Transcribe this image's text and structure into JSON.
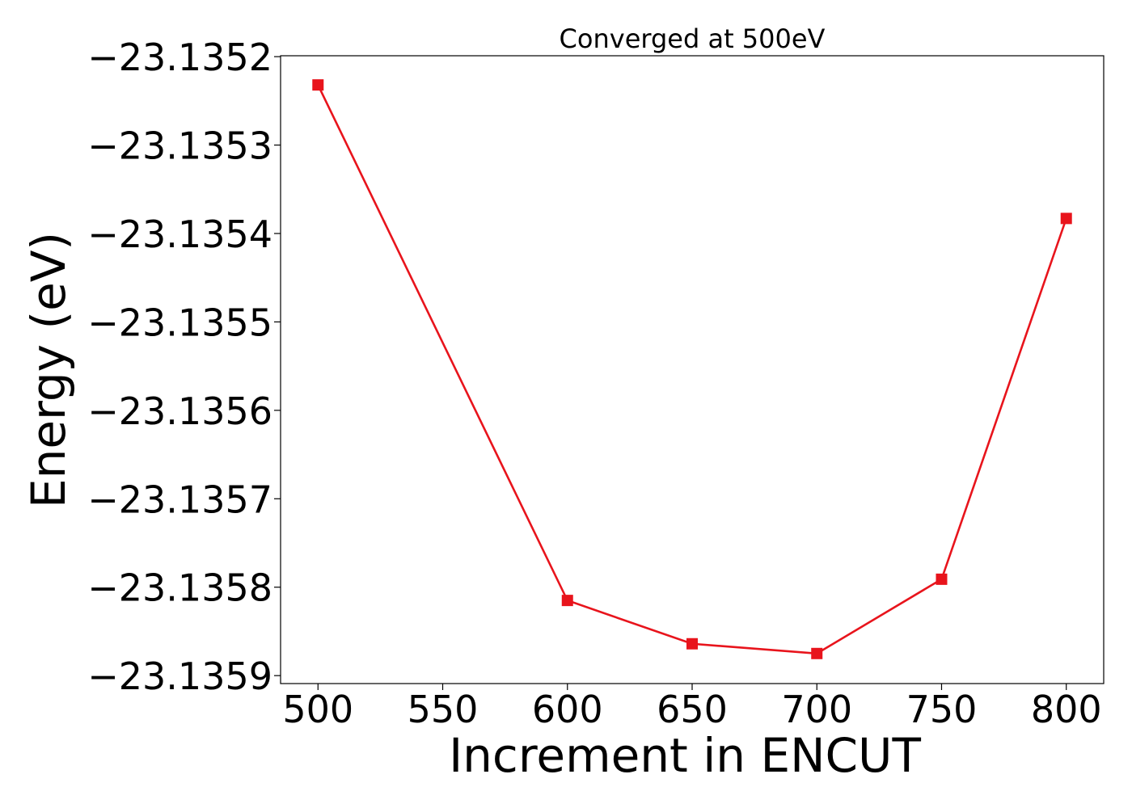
{
  "chart_data": {
    "type": "line",
    "title": "Converged at 500eV",
    "xlabel": "Increment in ENCUT",
    "ylabel": "Energy (eV)",
    "x": [
      500,
      600,
      650,
      700,
      750,
      800
    ],
    "series": [
      {
        "values": [
          -23.135232,
          -23.135815,
          -23.135864,
          -23.135875,
          -23.135791,
          -23.135383
        ],
        "color": "#e8141c",
        "marker": "square"
      }
    ],
    "xlim": [
      485,
      815
    ],
    "ylim": [
      -23.135909,
      -23.135199
    ],
    "xticks": [
      500,
      550,
      600,
      650,
      700,
      750,
      800
    ],
    "xtick_labels": [
      "500",
      "550",
      "600",
      "650",
      "700",
      "750",
      "800"
    ],
    "yticks": [
      -23.1352,
      -23.1353,
      -23.1354,
      -23.1355,
      -23.1356,
      -23.1357,
      -23.1358,
      -23.1359
    ],
    "ytick_labels": [
      "−23.1352",
      "−23.1353",
      "−23.1354",
      "−23.1355",
      "−23.1356",
      "−23.1357",
      "−23.1358",
      "−23.1359"
    ],
    "grid": false,
    "legend": false
  }
}
